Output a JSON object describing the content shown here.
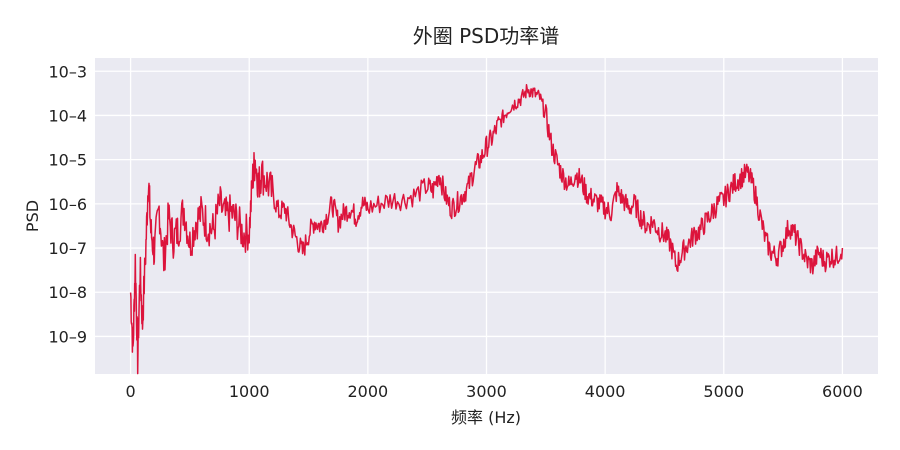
{
  "chart_data": {
    "type": "line",
    "title": "外圈 PSD功率谱",
    "xlabel": "频率 (Hz)",
    "ylabel": "PSD",
    "x_ticks": [
      0,
      1000,
      2000,
      3000,
      4000,
      5000,
      6000
    ],
    "x_tick_labels": [
      "0",
      "1000",
      "2000",
      "3000",
      "4000",
      "5000",
      "6000"
    ],
    "y_ticks": [
      -3,
      -4,
      -5,
      -6,
      -7,
      -8,
      -9
    ],
    "y_tick_labels": [
      "10–3",
      "10–4",
      "10–5",
      "10–6",
      "10–7",
      "10–8",
      "10–9"
    ],
    "xlim": [
      -300,
      6300
    ],
    "ylim_log10": [
      -9.85,
      -2.7
    ],
    "y_scale": "log",
    "grid": true,
    "colors": {
      "line": "#dc143c",
      "plot_bg": "#eaeaf2",
      "grid": "#ffffff"
    },
    "series": [
      {
        "freq_hz": [
          0,
          20,
          40,
          60,
          80,
          100,
          130,
          150,
          170,
          200,
          240,
          280,
          320,
          360,
          400,
          450,
          500,
          550,
          600,
          650,
          700,
          750,
          800,
          850,
          900,
          950,
          1000,
          1030,
          1050,
          1080,
          1100,
          1150,
          1200,
          1250,
          1300,
          1350,
          1400,
          1450,
          1500,
          1550,
          1600,
          1650,
          1700,
          1750,
          1800,
          1850,
          1900,
          1950,
          2000,
          2100,
          2200,
          2300,
          2400,
          2500,
          2550,
          2600,
          2650,
          2700,
          2750,
          2800,
          2850,
          2900,
          2950,
          3000,
          3050,
          3100,
          3150,
          3200,
          3250,
          3300,
          3350,
          3400,
          3450,
          3500,
          3550,
          3600,
          3650,
          3700,
          3750,
          3800,
          3850,
          3900,
          3950,
          4000,
          4050,
          4100,
          4150,
          4200,
          4250,
          4300,
          4350,
          4400,
          4450,
          4500,
          4550,
          4600,
          4650,
          4700,
          4750,
          4800,
          4850,
          4900,
          4950,
          5000,
          5050,
          5100,
          5150,
          5200,
          5250,
          5300,
          5350,
          5400,
          5450,
          5500,
          5550,
          5600,
          5650,
          5700,
          5750,
          5800,
          5850,
          5900,
          5950,
          6000
        ],
        "psd_log10": [
          -8.0,
          -9.3,
          -7.3,
          -9.5,
          -7.5,
          -8.7,
          -6.9,
          -5.4,
          -6.6,
          -7.1,
          -6.1,
          -7.3,
          -6.3,
          -6.8,
          -6.6,
          -6.1,
          -6.9,
          -6.4,
          -6.2,
          -6.5,
          -6.6,
          -6.0,
          -6.3,
          -6.2,
          -6.4,
          -6.7,
          -6.6,
          -5.4,
          -5.0,
          -5.6,
          -5.3,
          -5.5,
          -5.8,
          -6.2,
          -6.1,
          -6.5,
          -6.8,
          -7.1,
          -6.7,
          -6.4,
          -6.5,
          -6.3,
          -6.0,
          -6.4,
          -6.2,
          -6.1,
          -6.3,
          -6.0,
          -6.1,
          -6.0,
          -5.9,
          -5.9,
          -5.8,
          -5.6,
          -5.7,
          -5.3,
          -5.8,
          -6.1,
          -6.0,
          -5.8,
          -5.6,
          -5.2,
          -5.0,
          -4.7,
          -4.5,
          -4.2,
          -4.0,
          -3.8,
          -3.7,
          -3.6,
          -3.4,
          -3.5,
          -3.6,
          -4.0,
          -4.7,
          -5.1,
          -5.4,
          -5.6,
          -5.3,
          -5.5,
          -5.8,
          -5.9,
          -6.0,
          -6.1,
          -6.2,
          -5.7,
          -5.9,
          -6.1,
          -6.0,
          -6.3,
          -6.5,
          -6.4,
          -6.6,
          -6.7,
          -6.9,
          -7.4,
          -7.1,
          -6.9,
          -6.7,
          -6.6,
          -6.4,
          -6.2,
          -6.0,
          -5.9,
          -5.7,
          -5.5,
          -5.4,
          -5.3,
          -5.6,
          -6.2,
          -6.8,
          -7.1,
          -7.2,
          -6.9,
          -6.5,
          -6.7,
          -7.0,
          -7.3,
          -7.4,
          -7.1,
          -7.3,
          -7.2,
          -7.2,
          -7.0
        ]
      }
    ]
  }
}
